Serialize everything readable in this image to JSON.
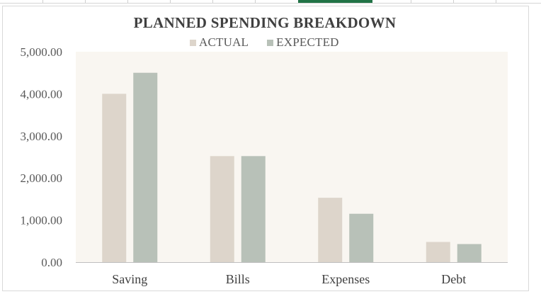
{
  "chart_data": {
    "type": "bar",
    "title": "PLANNED SPENDING BREAKDOWN",
    "categories": [
      "Saving",
      "Bills",
      "Expenses",
      "Debt"
    ],
    "series": [
      {
        "name": "ACTUAL",
        "values": [
          4000,
          2520,
          1530,
          480
        ],
        "color": "#ddd5cb"
      },
      {
        "name": "EXPECTED",
        "values": [
          4500,
          2520,
          1150,
          430
        ],
        "color": "#b8c1b8"
      }
    ],
    "ylim": [
      0,
      5000
    ],
    "yticks": [
      "0.00",
      "1,000.00",
      "2,000.00",
      "3,000.00",
      "4,000.00",
      "5,000.00"
    ],
    "xlabel": "",
    "ylabel": "",
    "grid": false,
    "legend_position": "top",
    "plot_background": "#f9f6f1"
  }
}
